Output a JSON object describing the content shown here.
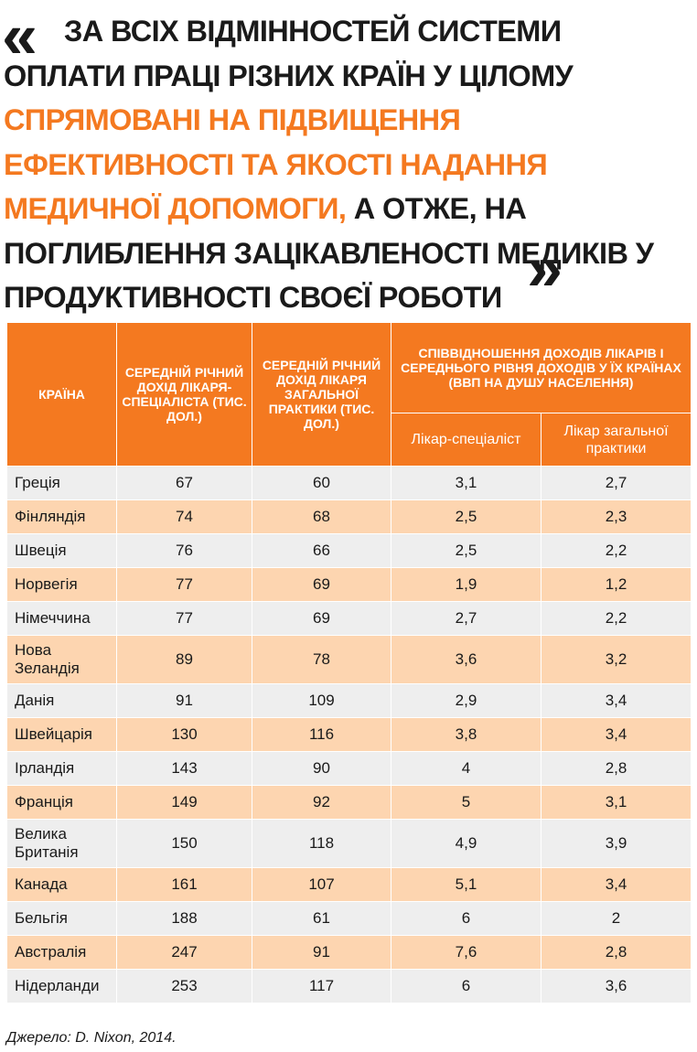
{
  "quote": {
    "open_mark": "«",
    "close_mark": "»",
    "part1": "за всіх відмінностей системи оплати праці різних країн у цілому ",
    "highlight": "спрямовані на підвищення ефективності та якості надання медичної допомоги,",
    "part2": " а отже, на поглиблення зацікавленості медиків у продуктивності своєї роботи"
  },
  "colors": {
    "accent": "#f47920",
    "row_odd": "#eeeeee",
    "row_even": "#fdd5b0"
  },
  "table": {
    "headers": {
      "country": "Країна",
      "specialist_income": "Середній річний дохід лікаря-спеціаліста (тис. дол.)",
      "gp_income": "Середній річний дохід лікаря загальної практики (тис. дол.)",
      "ratio_group": "Співвідношення доходів лікарів і середнього рівня доходів у їх країнах (ВВП на душу населення)",
      "ratio_specialist": "Лікар-спеціаліст",
      "ratio_gp": "Лікар загальної практики"
    },
    "rows": [
      {
        "country": "Греція",
        "spec": "67",
        "gp": "60",
        "ratio_spec": "3,1",
        "ratio_gp": "2,7"
      },
      {
        "country": "Фінляндія",
        "spec": "74",
        "gp": "68",
        "ratio_spec": "2,5",
        "ratio_gp": "2,3"
      },
      {
        "country": "Швеція",
        "spec": "76",
        "gp": "66",
        "ratio_spec": "2,5",
        "ratio_gp": "2,2"
      },
      {
        "country": "Норвегія",
        "spec": "77",
        "gp": "69",
        "ratio_spec": "1,9",
        "ratio_gp": "1,2"
      },
      {
        "country": "Німеччина",
        "spec": "77",
        "gp": "69",
        "ratio_spec": "2,7",
        "ratio_gp": "2,2"
      },
      {
        "country": "Нова Зеландія",
        "spec": "89",
        "gp": "78",
        "ratio_spec": "3,6",
        "ratio_gp": "3,2"
      },
      {
        "country": "Данія",
        "spec": "91",
        "gp": "109",
        "ratio_spec": "2,9",
        "ratio_gp": "3,4"
      },
      {
        "country": "Швейцарія",
        "spec": "130",
        "gp": "116",
        "ratio_spec": "3,8",
        "ratio_gp": "3,4"
      },
      {
        "country": "Ірландія",
        "spec": "143",
        "gp": "90",
        "ratio_spec": "4",
        "ratio_gp": "2,8"
      },
      {
        "country": "Франція",
        "spec": "149",
        "gp": "92",
        "ratio_spec": "5",
        "ratio_gp": "3,1"
      },
      {
        "country": "Велика Британія",
        "spec": "150",
        "gp": "118",
        "ratio_spec": "4,9",
        "ratio_gp": "3,9"
      },
      {
        "country": "Канада",
        "spec": "161",
        "gp": "107",
        "ratio_spec": "5,1",
        "ratio_gp": "3,4"
      },
      {
        "country": "Бельгія",
        "spec": "188",
        "gp": "61",
        "ratio_spec": "6",
        "ratio_gp": "2"
      },
      {
        "country": "Австралія",
        "spec": "247",
        "gp": "91",
        "ratio_spec": "7,6",
        "ratio_gp": "2,8"
      },
      {
        "country": "Нідерланди",
        "spec": "253",
        "gp": "117",
        "ratio_spec": "6",
        "ratio_gp": "3,6"
      }
    ]
  },
  "source": "Джерело: D. Nixon, 2014."
}
